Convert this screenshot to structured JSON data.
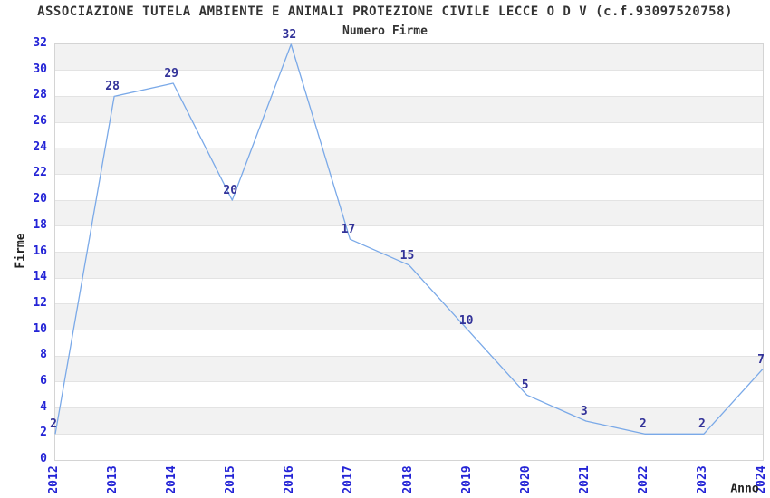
{
  "page": {
    "title": "ASSOCIAZIONE TUTELA AMBIENTE E ANIMALI PROTEZIONE CIVILE LECCE O D V (c.f.93097520758)",
    "subtitle": "Numero Firme"
  },
  "chart_data": {
    "type": "line",
    "title": "ASSOCIAZIONE TUTELA AMBIENTE E ANIMALI PROTEZIONE CIVILE LECCE O D V (c.f.93097520758)",
    "subtitle": "Numero Firme",
    "xlabel": "Anno",
    "ylabel": "Firme",
    "categories": [
      "2012",
      "2013",
      "2014",
      "2015",
      "2016",
      "2017",
      "2018",
      "2019",
      "2020",
      "2021",
      "2022",
      "2023",
      "2024"
    ],
    "values": [
      2,
      28,
      29,
      20,
      32,
      17,
      15,
      10,
      5,
      3,
      2,
      2,
      7
    ],
    "ylim": [
      0,
      32
    ],
    "ytick_step": 2,
    "grid": "horizontal gridlines with alternating shaded bands",
    "legend": "none",
    "data_labels_shown": true
  },
  "colors": {
    "line": "#7aa9e8",
    "tick_label": "#2424d6",
    "data_label": "#333399",
    "band_fill": "#f2f2f2",
    "gridline": "#e3e3e3",
    "plot_border": "#d4d4d4",
    "title_text": "#333333",
    "axis_title_text": "#222222",
    "background": "#ffffff"
  }
}
